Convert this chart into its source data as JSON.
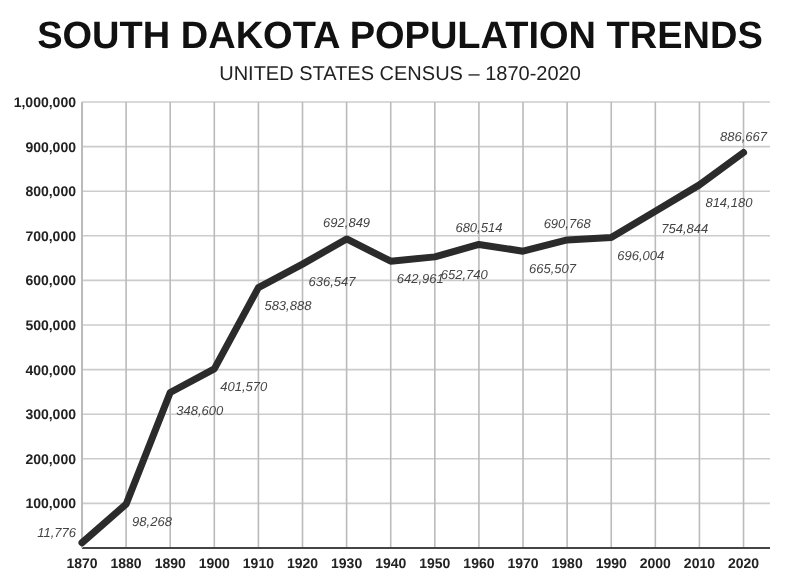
{
  "chart_data": {
    "type": "line",
    "title": "SOUTH DAKOTA POPULATION TRENDS",
    "subtitle": "UNITED STATES CENSUS – 1870-2020",
    "x": [
      1870,
      1880,
      1890,
      1900,
      1910,
      1920,
      1930,
      1940,
      1950,
      1960,
      1970,
      1980,
      1990,
      2000,
      2010,
      2020
    ],
    "series": [
      {
        "color": "#2b2b2b",
        "values": [
          11776,
          98268,
          348600,
          401570,
          583888,
          636547,
          692849,
          642961,
          652740,
          680514,
          665507,
          690768,
          696004,
          754844,
          814180,
          886667
        ],
        "value_labels": [
          "11,776",
          "98,268",
          "348,600",
          "401,570",
          "583,888",
          "636,547",
          "692,849",
          "642,961",
          "652,740",
          "680,514",
          "665,507",
          "690,768",
          "696,004",
          "754,844",
          "814,180",
          "886,667"
        ]
      }
    ],
    "xlim": [
      1870,
      2026
    ],
    "xticks": [
      1870,
      1880,
      1890,
      1900,
      1910,
      1920,
      1930,
      1940,
      1950,
      1960,
      1970,
      1980,
      1990,
      2000,
      2010,
      2020
    ],
    "ylim": [
      0,
      1000000
    ],
    "yticks": [
      {
        "value": 0,
        "label": null
      },
      {
        "value": 100000,
        "label": "100,000"
      },
      {
        "value": 200000,
        "label": "200,000"
      },
      {
        "value": 300000,
        "label": "300,000"
      },
      {
        "value": 400000,
        "label": "400,000"
      },
      {
        "value": 500000,
        "label": "500,000"
      },
      {
        "value": 600000,
        "label": "600,000"
      },
      {
        "value": 700000,
        "label": "700,000"
      },
      {
        "value": 800000,
        "label": "800,000"
      },
      {
        "value": 900000,
        "label": "900,000"
      },
      {
        "value": 1000000,
        "label": "1,000,000"
      }
    ],
    "grid": true,
    "marker": "none",
    "line_style": "solid"
  }
}
